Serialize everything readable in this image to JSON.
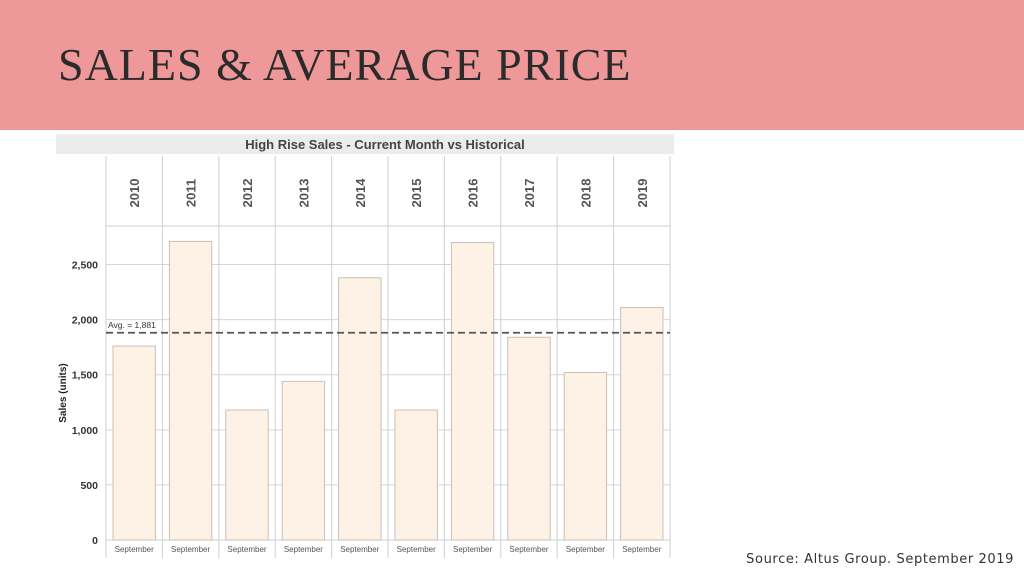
{
  "slide": {
    "title": "SALES & AVERAGE PRICE",
    "source": "Source: Altus Group. September 2019"
  },
  "colors": {
    "banner": "#ee9899",
    "bar_fill": "#fef1e6",
    "bar_stroke": "#c9c0b8",
    "header_bg": "#ececec"
  },
  "chart_data": {
    "type": "bar",
    "title": "High Rise Sales - Current Month vs Historical",
    "ylabel": "Sales (units)",
    "xlabel": "",
    "ylim": [
      0,
      2850
    ],
    "yticks": [
      0,
      500,
      1000,
      1500,
      2000,
      2500
    ],
    "ytick_labels": [
      "0",
      "500",
      "1,000",
      "1,500",
      "2,000",
      "2,500"
    ],
    "categories": [
      "2010",
      "2011",
      "2012",
      "2013",
      "2014",
      "2015",
      "2016",
      "2017",
      "2018",
      "2019"
    ],
    "sublabels": [
      "September",
      "September",
      "September",
      "September",
      "September",
      "September",
      "September",
      "September",
      "September",
      "September"
    ],
    "values": [
      1760,
      2710,
      1180,
      1440,
      2380,
      1180,
      2700,
      1840,
      1520,
      2110
    ],
    "average": {
      "value": 1881,
      "label": "Avg. = 1,881"
    },
    "grid": true,
    "legend": "none"
  }
}
